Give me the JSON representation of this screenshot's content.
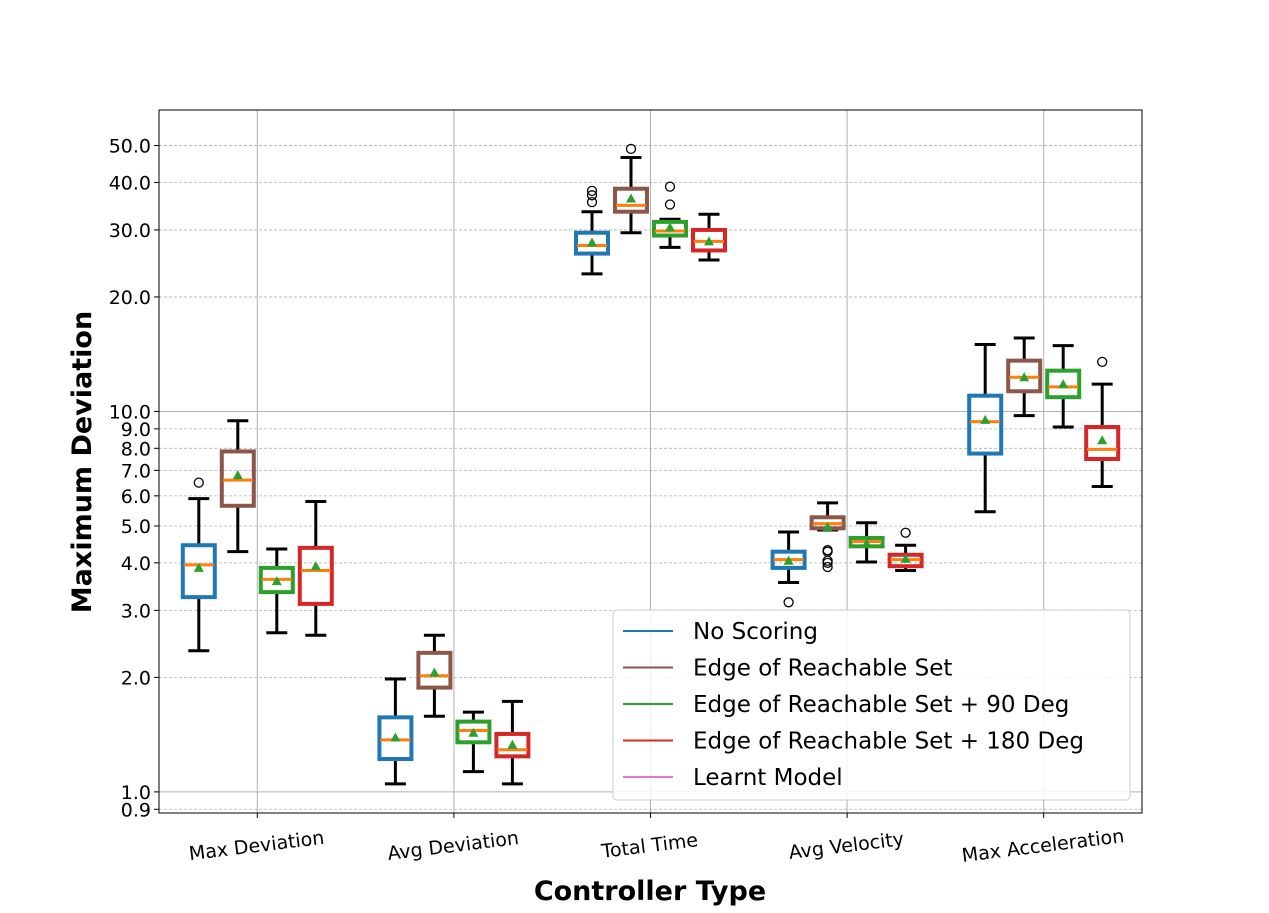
{
  "chart_data": {
    "type": "box",
    "xlabel": "Controller Type",
    "ylabel": "Maximum Deviation",
    "yscale": "log",
    "ylim": [
      0.88,
      62
    ],
    "yticks": [
      {
        "value": 0.9,
        "label": "0.9"
      },
      {
        "value": 1.0,
        "label": "1.0"
      },
      {
        "value": 2.0,
        "label": "2.0"
      },
      {
        "value": 3.0,
        "label": "3.0"
      },
      {
        "value": 4.0,
        "label": "4.0"
      },
      {
        "value": 5.0,
        "label": "5.0"
      },
      {
        "value": 6.0,
        "label": "6.0"
      },
      {
        "value": 7.0,
        "label": "7.0"
      },
      {
        "value": 8.0,
        "label": "8.0"
      },
      {
        "value": 9.0,
        "label": "9.0"
      },
      {
        "value": 10.0,
        "label": "10.0"
      },
      {
        "value": 20.0,
        "label": "20.0"
      },
      {
        "value": 30.0,
        "label": "30.0"
      },
      {
        "value": 40.0,
        "label": "40.0"
      },
      {
        "value": 50.0,
        "label": "50.0"
      }
    ],
    "grid": true,
    "legend_position": "lower-right",
    "categories": [
      "Max Deviation",
      "Avg Deviation",
      "Total Time",
      "Avg Velocity",
      "Max Acceleration"
    ],
    "series": [
      {
        "name": "No Scoring",
        "color": "#1f77b4",
        "boxes": [
          {
            "whislo": 2.35,
            "q1": 3.25,
            "med": 3.95,
            "q3": 4.45,
            "whishi": 5.9,
            "mean": 3.88,
            "fliers": [
              6.5
            ]
          },
          {
            "whislo": 1.05,
            "q1": 1.22,
            "med": 1.37,
            "q3": 1.57,
            "whishi": 1.98,
            "mean": 1.39,
            "fliers": []
          },
          {
            "whislo": 23.0,
            "q1": 26.0,
            "med": 27.3,
            "q3": 29.5,
            "whishi": 33.5,
            "mean": 27.8,
            "fliers": [
              35.5,
              37.0,
              38.0
            ]
          },
          {
            "whislo": 3.55,
            "q1": 3.88,
            "med": 4.08,
            "q3": 4.28,
            "whishi": 4.82,
            "mean": 4.05,
            "fliers": [
              3.15
            ]
          },
          {
            "whislo": 5.45,
            "q1": 7.75,
            "med": 9.4,
            "q3": 11.0,
            "whishi": 15.0,
            "mean": 9.5,
            "fliers": []
          }
        ]
      },
      {
        "name": "Edge of Reachable Set",
        "color": "#8c564b",
        "boxes": [
          {
            "whislo": 4.28,
            "q1": 5.65,
            "med": 6.6,
            "q3": 7.85,
            "whishi": 9.45,
            "mean": 6.8,
            "fliers": []
          },
          {
            "whislo": 1.58,
            "q1": 1.88,
            "med": 2.02,
            "q3": 2.32,
            "whishi": 2.58,
            "mean": 2.06,
            "fliers": []
          },
          {
            "whislo": 29.5,
            "q1": 33.5,
            "med": 34.8,
            "q3": 38.5,
            "whishi": 46.5,
            "mean": 36.3,
            "fliers": [
              49.0
            ]
          },
          {
            "whislo": 4.88,
            "q1": 4.93,
            "med": 5.07,
            "q3": 5.27,
            "whishi": 5.75,
            "mean": 4.97,
            "fliers": [
              3.9,
              4.0,
              4.05,
              4.28,
              4.32
            ]
          },
          {
            "whislo": 9.75,
            "q1": 11.3,
            "med": 12.3,
            "q3": 13.6,
            "whishi": 15.6,
            "mean": 12.3,
            "fliers": []
          }
        ]
      },
      {
        "name": "Edge of Reachable Set + 90 Deg",
        "color": "#2ca02c",
        "boxes": [
          {
            "whislo": 2.62,
            "q1": 3.35,
            "med": 3.62,
            "q3": 3.88,
            "whishi": 4.35,
            "mean": 3.58,
            "fliers": []
          },
          {
            "whislo": 1.13,
            "q1": 1.35,
            "med": 1.45,
            "q3": 1.53,
            "whishi": 1.62,
            "mean": 1.43,
            "fliers": []
          },
          {
            "whislo": 27.0,
            "q1": 29.0,
            "med": 29.8,
            "q3": 31.5,
            "whishi": 32.0,
            "mean": 30.5,
            "fliers": [
              35.0,
              39.0
            ]
          },
          {
            "whislo": 4.02,
            "q1": 4.42,
            "med": 4.55,
            "q3": 4.65,
            "whishi": 5.1,
            "mean": 4.5,
            "fliers": []
          },
          {
            "whislo": 9.1,
            "q1": 10.9,
            "med": 11.6,
            "q3": 12.8,
            "whishi": 14.9,
            "mean": 11.8,
            "fliers": []
          }
        ]
      },
      {
        "name": "Edge of Reachable Set + 180 Deg",
        "color": "#d62728",
        "boxes": [
          {
            "whislo": 2.58,
            "q1": 3.12,
            "med": 3.82,
            "q3": 4.38,
            "whishi": 5.8,
            "mean": 3.92,
            "fliers": []
          },
          {
            "whislo": 1.05,
            "q1": 1.24,
            "med": 1.29,
            "q3": 1.42,
            "whishi": 1.73,
            "mean": 1.33,
            "fliers": []
          },
          {
            "whislo": 25.0,
            "q1": 26.5,
            "med": 28.0,
            "q3": 30.0,
            "whishi": 33.0,
            "mean": 28.0,
            "fliers": []
          },
          {
            "whislo": 3.82,
            "q1": 3.92,
            "med": 4.08,
            "q3": 4.2,
            "whishi": 4.45,
            "mean": 4.1,
            "fliers": [
              4.8
            ]
          },
          {
            "whislo": 6.35,
            "q1": 7.5,
            "med": 7.95,
            "q3": 9.1,
            "whishi": 11.8,
            "mean": 8.4,
            "fliers": [
              13.5
            ]
          }
        ]
      },
      {
        "name": "Learnt Model",
        "color": "#e377c2",
        "boxes": []
      }
    ],
    "median_color": "#ff7f0e",
    "mean_marker_color": "#2ca02c"
  }
}
